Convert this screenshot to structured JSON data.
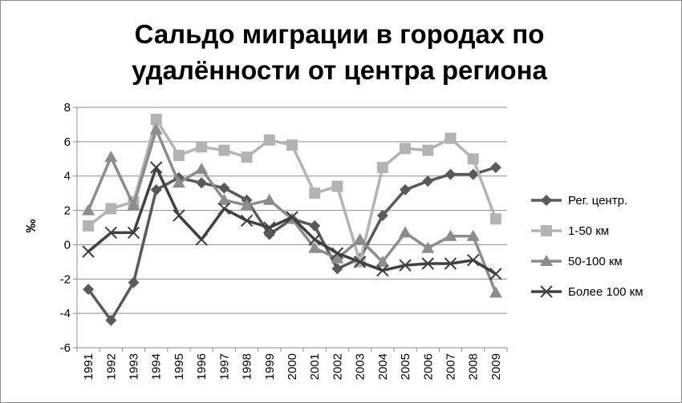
{
  "chart_data": {
    "type": "line",
    "title_lines": [
      "Сальдо миграции в городах по",
      "удалённости от центра региона"
    ],
    "xlabel": "",
    "ylabel": "‰",
    "ylim": [
      -6,
      8
    ],
    "yticks": [
      -6,
      -4,
      -2,
      0,
      2,
      4,
      6,
      8
    ],
    "grid": true,
    "legend": "right",
    "categories": [
      "1991",
      "1992",
      "1993",
      "1994",
      "1995",
      "1996",
      "1997",
      "1998",
      "1999",
      "2000",
      "2001",
      "2002",
      "2003",
      "2004",
      "2005",
      "2006",
      "2007",
      "2008",
      "2009"
    ],
    "series": [
      {
        "name": "Рег. центр.",
        "marker": "diamond",
        "color": "#595959",
        "values": [
          -2.6,
          -4.4,
          -2.2,
          3.2,
          3.9,
          3.6,
          3.3,
          2.6,
          0.6,
          1.5,
          1.1,
          -1.4,
          -0.8,
          1.7,
          3.2,
          3.7,
          4.1,
          4.1,
          4.5
        ]
      },
      {
        "name": "1-50 км",
        "marker": "square",
        "color": "#b3b3b3",
        "values": [
          1.1,
          2.1,
          2.5,
          7.3,
          5.2,
          5.7,
          5.5,
          5.1,
          6.1,
          5.8,
          3.0,
          3.4,
          -1.0,
          4.5,
          5.6,
          5.5,
          6.2,
          5.0,
          1.5
        ]
      },
      {
        "name": "50-100 км",
        "marker": "triangle",
        "color": "#8c8c8c",
        "values": [
          2.0,
          5.1,
          2.3,
          6.7,
          3.6,
          4.4,
          2.6,
          2.3,
          2.6,
          1.5,
          -0.2,
          -0.8,
          0.3,
          -1.0,
          0.7,
          -0.2,
          0.5,
          0.5,
          -2.8
        ]
      },
      {
        "name": "Более 100 км",
        "marker": "x",
        "color": "#404040",
        "values": [
          -0.4,
          0.7,
          0.7,
          4.5,
          1.7,
          0.3,
          2.1,
          1.4,
          1.0,
          1.6,
          0.3,
          -0.5,
          -1.0,
          -1.5,
          -1.2,
          -1.1,
          -1.1,
          -0.9,
          -1.7
        ]
      }
    ]
  }
}
